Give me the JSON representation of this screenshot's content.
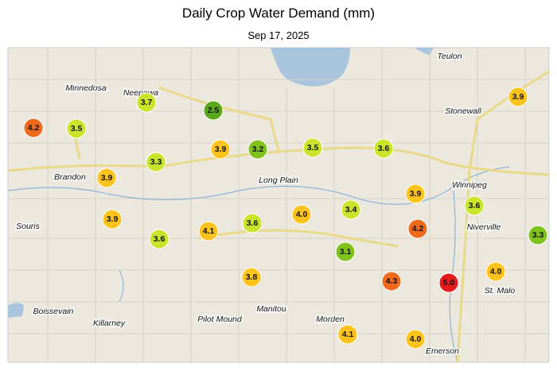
{
  "title": "Daily Crop Water Demand (mm)",
  "subtitle": "Sep 17, 2025",
  "towns": [
    "Teulon",
    "Minnedosa",
    "Neepawa",
    "Stonewall",
    "Winnipeg",
    "Brandon",
    "Long Plain",
    "Souris",
    "Niverville",
    "St. Malo",
    "Boissevain",
    "Killarney",
    "Pilot Mound",
    "Manitou",
    "Morden",
    "Emerson"
  ],
  "stations": [
    {
      "value": 4.2,
      "label": "4.2",
      "color": "#f06a1c"
    },
    {
      "value": 3.5,
      "label": "3.5",
      "color": "#c9e52b"
    },
    {
      "value": 3.7,
      "label": "3.7",
      "color": "#c9e52b"
    },
    {
      "value": 2.5,
      "label": "2.5",
      "color": "#5ca81c"
    },
    {
      "value": 3.9,
      "label": "3.9",
      "color": "#ffc41c"
    },
    {
      "value": 3.2,
      "label": "3.2",
      "color": "#7fc21c"
    },
    {
      "value": 3.5,
      "label": "3.5",
      "color": "#c9e52b"
    },
    {
      "value": 3.6,
      "label": "3.6",
      "color": "#c9e52b"
    },
    {
      "value": 3.9,
      "label": "3.9",
      "color": "#ffc41c"
    },
    {
      "value": 3.3,
      "label": "3.3",
      "color": "#c9e52b"
    },
    {
      "value": 3.9,
      "label": "3.9",
      "color": "#ffc41c"
    },
    {
      "value": 3.9,
      "label": "3.9",
      "color": "#ffc41c"
    },
    {
      "value": 3.9,
      "label": "3.9",
      "color": "#ffc41c"
    },
    {
      "value": 3.6,
      "label": "3.6",
      "color": "#c9e52b"
    },
    {
      "value": 4.1,
      "label": "4.1",
      "color": "#ffc41c"
    },
    {
      "value": 3.6,
      "label": "3.6",
      "color": "#c9e52b"
    },
    {
      "value": 4.0,
      "label": "4.0",
      "color": "#ffc41c"
    },
    {
      "value": 3.4,
      "label": "3.4",
      "color": "#c9e52b"
    },
    {
      "value": 4.2,
      "label": "4.2",
      "color": "#f06a1c"
    },
    {
      "value": 3.6,
      "label": "3.6",
      "color": "#c9e52b"
    },
    {
      "value": 3.3,
      "label": "3.3",
      "color": "#7fc21c"
    },
    {
      "value": 3.1,
      "label": "3.1",
      "color": "#7fc21c"
    },
    {
      "value": 3.8,
      "label": "3.8",
      "color": "#ffc41c"
    },
    {
      "value": 4.3,
      "label": "4.3",
      "color": "#f06a1c"
    },
    {
      "value": 5.0,
      "label": "5.0",
      "color": "#e6191c"
    },
    {
      "value": 4.0,
      "label": "4.0",
      "color": "#ffc41c"
    },
    {
      "value": 4.1,
      "label": "4.1",
      "color": "#ffc41c"
    },
    {
      "value": 4.0,
      "label": "4.0",
      "color": "#ffc41c"
    }
  ]
}
